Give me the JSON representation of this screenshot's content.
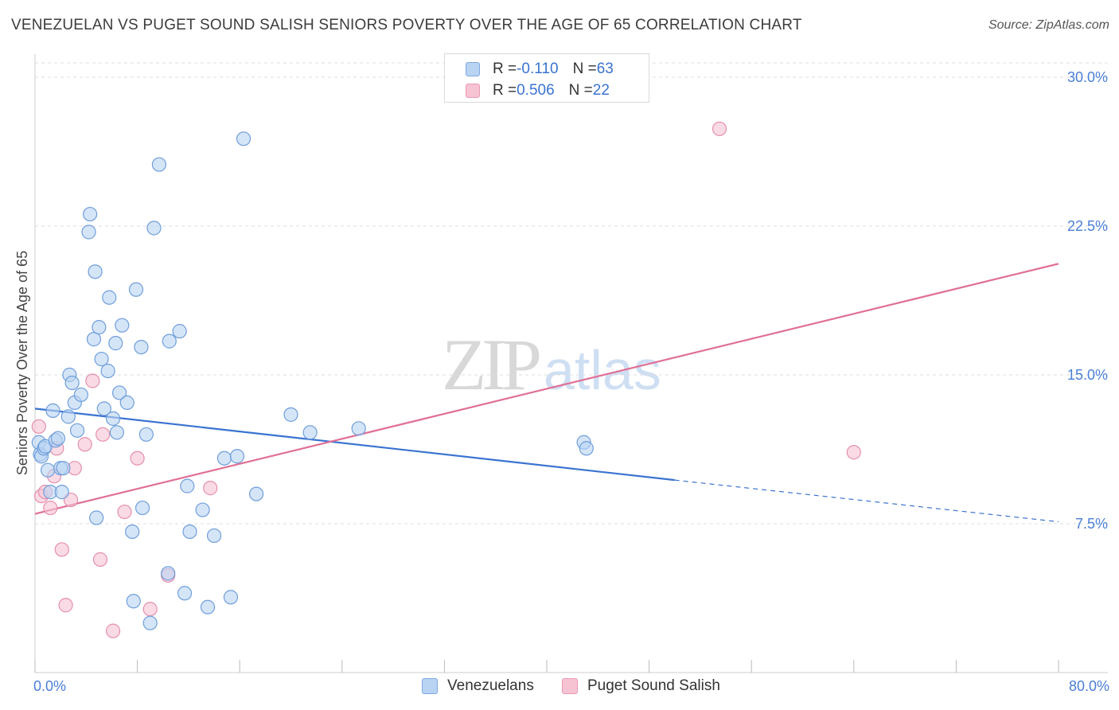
{
  "title": "VENEZUELAN VS PUGET SOUND SALISH SENIORS POVERTY OVER THE AGE OF 65 CORRELATION CHART",
  "source": "Source: ZipAtlas.com",
  "watermark": {
    "zip": "ZIP",
    "atlas": "atlas"
  },
  "colors": {
    "blue": "#3a73d0",
    "blue_fill": "#b9d3f3",
    "pink": "#e07096",
    "pink_fill": "#f6c3d3",
    "grid": "#dedede",
    "accent_text": "#4a7fd6"
  },
  "legend": {
    "rows": [
      {
        "r_label": "R = ",
        "r_value": "-0.110",
        "n_label": "N = ",
        "n_value": "63"
      },
      {
        "r_label": "R = ",
        "r_value": "0.506",
        "n_label": "N = ",
        "n_value": "22"
      }
    ]
  },
  "bottom_legend": [
    "Venezuelans",
    "Puget Sound Salish"
  ],
  "chart_data": {
    "type": "scatter",
    "title": "VENEZUELAN VS PUGET SOUND SALISH SENIORS POVERTY OVER THE AGE OF 65 CORRELATION CHART",
    "xlabel": "",
    "ylabel": "Seniors Poverty Over the Age of 65",
    "xlim": [
      0,
      80
    ],
    "ylim": [
      0,
      32
    ],
    "x_tick_labels": [
      "0.0%",
      "80.0%"
    ],
    "y_ticks": [
      7.5,
      15.0,
      22.5,
      30.0
    ],
    "y_tick_labels": [
      "7.5%",
      "15.0%",
      "22.5%",
      "30.0%"
    ],
    "grid": true,
    "legend_position": "top-center",
    "series": [
      {
        "name": "Venezuelans",
        "color": "#3a73d0",
        "R": -0.11,
        "N": 63,
        "trend": {
          "x0": 0,
          "y0": 13.3,
          "x1": 50,
          "y1": 9.7,
          "dash_to_x": 80,
          "dash_to_y": 7.6
        },
        "points": [
          [
            0.3,
            11.6
          ],
          [
            0.4,
            11.0
          ],
          [
            0.5,
            10.9
          ],
          [
            0.7,
            11.3
          ],
          [
            0.8,
            11.4
          ],
          [
            1.0,
            10.2
          ],
          [
            1.2,
            9.1
          ],
          [
            1.4,
            13.2
          ],
          [
            1.6,
            11.7
          ],
          [
            1.8,
            11.8
          ],
          [
            2.0,
            10.3
          ],
          [
            2.1,
            9.1
          ],
          [
            2.2,
            10.3
          ],
          [
            2.6,
            12.9
          ],
          [
            2.7,
            15.0
          ],
          [
            2.9,
            14.6
          ],
          [
            3.1,
            13.6
          ],
          [
            3.3,
            12.2
          ],
          [
            3.6,
            14.0
          ],
          [
            4.2,
            22.2
          ],
          [
            4.3,
            23.1
          ],
          [
            4.6,
            16.8
          ],
          [
            4.8,
            7.8
          ],
          [
            5.0,
            17.4
          ],
          [
            5.2,
            15.8
          ],
          [
            5.4,
            13.3
          ],
          [
            5.7,
            15.2
          ],
          [
            5.8,
            18.9
          ],
          [
            6.1,
            12.8
          ],
          [
            6.3,
            16.6
          ],
          [
            6.4,
            12.1
          ],
          [
            6.6,
            14.1
          ],
          [
            6.8,
            17.5
          ],
          [
            7.2,
            13.6
          ],
          [
            7.6,
            7.1
          ],
          [
            7.7,
            3.6
          ],
          [
            7.9,
            19.3
          ],
          [
            8.3,
            16.4
          ],
          [
            8.4,
            8.3
          ],
          [
            8.7,
            12.0
          ],
          [
            9.0,
            2.5
          ],
          [
            9.3,
            22.4
          ],
          [
            9.7,
            25.6
          ],
          [
            10.4,
            5.0
          ],
          [
            10.5,
            16.7
          ],
          [
            11.3,
            17.2
          ],
          [
            11.7,
            4.0
          ],
          [
            11.9,
            9.4
          ],
          [
            12.1,
            7.1
          ],
          [
            13.1,
            8.2
          ],
          [
            13.5,
            3.3
          ],
          [
            14.0,
            6.9
          ],
          [
            14.8,
            10.8
          ],
          [
            15.3,
            3.8
          ],
          [
            15.8,
            10.9
          ],
          [
            16.3,
            26.9
          ],
          [
            17.3,
            9.0
          ],
          [
            20.0,
            13.0
          ],
          [
            21.5,
            12.1
          ],
          [
            25.3,
            12.3
          ],
          [
            42.9,
            11.6
          ],
          [
            43.1,
            11.3
          ],
          [
            4.7,
            20.2
          ]
        ]
      },
      {
        "name": "Puget Sound Salish",
        "color": "#e07096",
        "R": 0.506,
        "N": 22,
        "trend": {
          "x0": 0,
          "y0": 8.0,
          "x1": 80,
          "y1": 20.6
        },
        "points": [
          [
            0.3,
            12.4
          ],
          [
            0.5,
            8.9
          ],
          [
            0.8,
            9.1
          ],
          [
            1.2,
            8.3
          ],
          [
            1.5,
            9.9
          ],
          [
            1.7,
            11.3
          ],
          [
            2.1,
            6.2
          ],
          [
            2.4,
            3.4
          ],
          [
            2.8,
            8.7
          ],
          [
            3.1,
            10.3
          ],
          [
            3.9,
            11.5
          ],
          [
            4.5,
            14.7
          ],
          [
            5.1,
            5.7
          ],
          [
            5.3,
            12.0
          ],
          [
            6.1,
            2.1
          ],
          [
            7.0,
            8.1
          ],
          [
            8.0,
            10.8
          ],
          [
            9.0,
            3.2
          ],
          [
            10.4,
            4.9
          ],
          [
            13.7,
            9.3
          ],
          [
            53.5,
            27.4
          ],
          [
            64.0,
            11.1
          ]
        ]
      }
    ]
  }
}
